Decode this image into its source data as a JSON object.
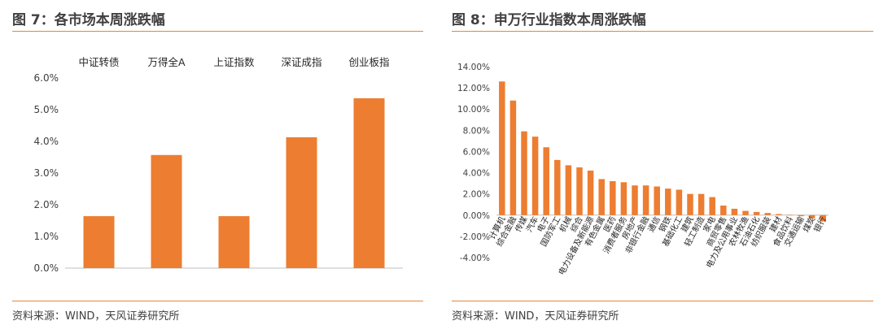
{
  "left": {
    "title": "图 7：各市场本周涨跌幅",
    "source": "资料来源：WIND，天风证券研究所",
    "chart_data": {
      "type": "bar",
      "categories": [
        "中证转债",
        "万得全A",
        "上证指数",
        "深证成指",
        "创业板指"
      ],
      "values": [
        0.0164,
        0.0357,
        0.0164,
        0.0413,
        0.0536
      ],
      "ylim": [
        0,
        0.06
      ],
      "yticks": [
        "0.0%",
        "1.0%",
        "2.0%",
        "3.0%",
        "4.0%",
        "5.0%",
        "6.0%"
      ],
      "category_labels_position": "top",
      "bar_color": "#ED7D31",
      "grid": false,
      "legend": "none"
    }
  },
  "right": {
    "title": "图 8：申万行业指数本周涨跌幅",
    "source": "资料来源：WIND，天风证券研究所",
    "chart_data": {
      "type": "bar",
      "categories": [
        "计算机",
        "综合金融",
        "传媒",
        "汽车",
        "电子",
        "国防军工",
        "机械",
        "综合",
        "电力设备及新能源",
        "有色金属",
        "医药",
        "消费者服务",
        "房地产",
        "非银行金融",
        "通信",
        "钢铁",
        "基础化工",
        "建筑",
        "轻工制造",
        "家电",
        "商贸零售",
        "电力及公用事业",
        "农林牧渔",
        "石油石化",
        "纺织服装",
        "建材",
        "食品饮料",
        "交通运输",
        "煤炭",
        "银行"
      ],
      "values": [
        0.126,
        0.108,
        0.079,
        0.074,
        0.064,
        0.052,
        0.047,
        0.045,
        0.042,
        0.034,
        0.032,
        0.031,
        0.028,
        0.028,
        0.027,
        0.025,
        0.024,
        0.02,
        0.02,
        0.017,
        0.009,
        0.006,
        0.004,
        0.003,
        0.002,
        0.001,
        0.0003,
        -0.001,
        -0.003,
        -0.006
      ],
      "ylim": [
        -0.04,
        0.14
      ],
      "yticks": [
        "-4.00%",
        "-2.00%",
        "0.00%",
        "2.00%",
        "4.00%",
        "6.00%",
        "8.00%",
        "10.00%",
        "12.00%",
        "14.00%"
      ],
      "bar_color": "#ED7D31",
      "grid": false,
      "legend": "none"
    }
  },
  "colors": {
    "accent": "#E8863A",
    "bar": "#ED7D31",
    "axis": "#BFBFBF"
  }
}
